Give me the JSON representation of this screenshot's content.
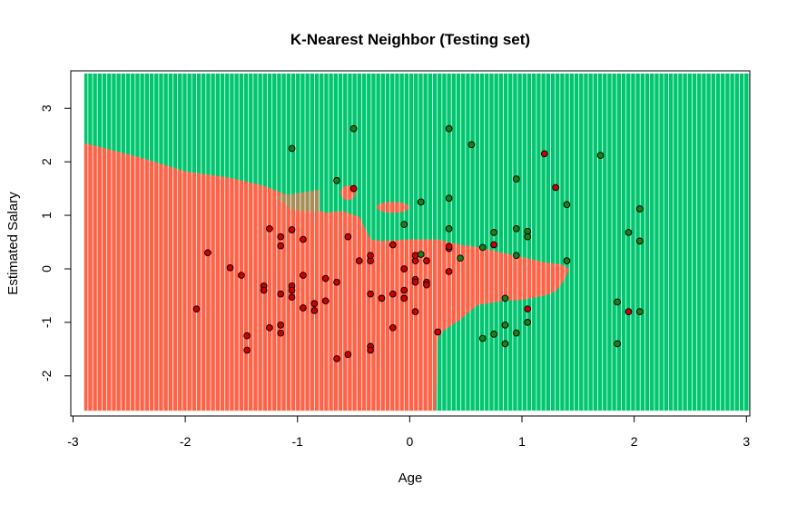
{
  "chart_data": {
    "type": "scatter",
    "title": "K-Nearest Neighbor (Testing set)",
    "xlabel": "Age",
    "ylabel": "Estimated Salary",
    "xlim": [
      -3.02,
      3.03
    ],
    "ylim": [
      -2.75,
      3.7
    ],
    "x_ticks": [
      -3,
      -2,
      -1,
      0,
      1,
      2,
      3
    ],
    "y_ticks": [
      -2,
      -1,
      0,
      1,
      2,
      3
    ],
    "grid": false,
    "legend": "none",
    "colors": {
      "region_0": "#ff6347",
      "region_1": "#00c66f",
      "point_0": "#cc0000",
      "point_1": "#1a7d1a",
      "point_border": "#000000"
    },
    "decision_boundary": [
      [
        -2.9,
        2.35
      ],
      [
        -2.4,
        2.08
      ],
      [
        -2.0,
        1.82
      ],
      [
        -1.6,
        1.7
      ],
      [
        -1.3,
        1.55
      ],
      [
        -1.1,
        1.38
      ],
      [
        -1.0,
        1.28
      ],
      [
        -0.82,
        1.1
      ],
      [
        -0.75,
        1.05
      ],
      [
        -0.6,
        1.08
      ],
      [
        -0.45,
        0.97
      ],
      [
        -0.35,
        0.55
      ],
      [
        -0.25,
        0.52
      ],
      [
        0.0,
        0.55
      ],
      [
        0.25,
        0.55
      ],
      [
        0.45,
        0.45
      ],
      [
        0.62,
        0.4
      ],
      [
        0.78,
        0.32
      ],
      [
        1.0,
        0.22
      ],
      [
        1.2,
        0.12
      ],
      [
        1.35,
        0.08
      ],
      [
        1.42,
        0.0
      ],
      [
        1.38,
        -0.2
      ],
      [
        1.3,
        -0.42
      ],
      [
        1.2,
        -0.5
      ],
      [
        1.0,
        -0.58
      ],
      [
        0.82,
        -0.6
      ],
      [
        0.6,
        -0.68
      ],
      [
        0.45,
        -0.95
      ],
      [
        0.3,
        -1.15
      ],
      [
        0.25,
        -1.3
      ],
      [
        0.23,
        -2.65
      ]
    ],
    "series": [
      {
        "values": [
          [
            -1.9,
            -0.75
          ],
          [
            -1.8,
            0.3
          ],
          [
            -1.6,
            0.02
          ],
          [
            -1.5,
            -0.12
          ],
          [
            -1.45,
            -1.25
          ],
          [
            -1.45,
            -1.52
          ],
          [
            -1.3,
            -0.32
          ],
          [
            -1.3,
            -0.4
          ],
          [
            -1.25,
            0.75
          ],
          [
            -1.25,
            -1.1
          ],
          [
            -1.15,
            0.6
          ],
          [
            -1.15,
            0.43
          ],
          [
            -1.15,
            -0.47
          ],
          [
            -1.15,
            -1.05
          ],
          [
            -1.15,
            -1.2
          ],
          [
            -1.05,
            0.73
          ],
          [
            -1.05,
            -0.32
          ],
          [
            -1.05,
            -0.4
          ],
          [
            -1.05,
            -0.53
          ],
          [
            -0.95,
            0.55
          ],
          [
            -0.95,
            -0.12
          ],
          [
            -0.95,
            -0.73
          ],
          [
            -0.85,
            -0.65
          ],
          [
            -0.85,
            -0.78
          ],
          [
            -0.75,
            -0.18
          ],
          [
            -0.75,
            -0.6
          ],
          [
            -0.65,
            -0.25
          ],
          [
            -0.65,
            -1.68
          ],
          [
            -0.55,
            0.6
          ],
          [
            -0.55,
            -1.6
          ],
          [
            -0.5,
            1.5
          ],
          [
            -0.45,
            0.15
          ],
          [
            -0.35,
            0.15
          ],
          [
            -0.35,
            0.25
          ],
          [
            -0.35,
            -0.47
          ],
          [
            -0.35,
            -1.45
          ],
          [
            -0.35,
            -1.52
          ],
          [
            -0.25,
            -0.55
          ],
          [
            -0.15,
            0.45
          ],
          [
            -0.15,
            -0.47
          ],
          [
            -0.15,
            -1.1
          ],
          [
            -0.05,
            0.0
          ],
          [
            -0.05,
            -0.4
          ],
          [
            -0.05,
            -0.55
          ],
          [
            0.05,
            0.15
          ],
          [
            0.05,
            0.25
          ],
          [
            0.05,
            -0.2
          ],
          [
            0.05,
            -0.25
          ],
          [
            0.05,
            -0.8
          ],
          [
            0.15,
            -0.25
          ],
          [
            0.15,
            -0.3
          ],
          [
            0.15,
            0.15
          ],
          [
            0.25,
            -1.18
          ],
          [
            0.35,
            0.38
          ],
          [
            0.35,
            0.42
          ],
          [
            0.35,
            -0.05
          ],
          [
            0.75,
            0.45
          ],
          [
            1.05,
            -0.75
          ],
          [
            1.2,
            2.15
          ],
          [
            1.3,
            1.52
          ],
          [
            1.95,
            -0.8
          ]
        ],
        "class": "0"
      },
      {
        "values": [
          [
            -1.05,
            2.25
          ],
          [
            -0.5,
            2.62
          ],
          [
            -0.65,
            1.65
          ],
          [
            -0.05,
            0.83
          ],
          [
            0.1,
            1.25
          ],
          [
            0.35,
            2.62
          ],
          [
            0.35,
            1.32
          ],
          [
            0.35,
            0.75
          ],
          [
            0.55,
            2.32
          ],
          [
            0.65,
            0.4
          ],
          [
            0.65,
            -1.3
          ],
          [
            0.75,
            0.68
          ],
          [
            0.75,
            -1.22
          ],
          [
            0.85,
            -0.55
          ],
          [
            0.85,
            -1.05
          ],
          [
            0.85,
            -1.4
          ],
          [
            0.95,
            1.68
          ],
          [
            0.95,
            0.75
          ],
          [
            0.95,
            0.25
          ],
          [
            0.95,
            -1.2
          ],
          [
            1.05,
            0.7
          ],
          [
            1.05,
            0.6
          ],
          [
            1.05,
            -1.0
          ],
          [
            1.4,
            1.2
          ],
          [
            1.4,
            0.15
          ],
          [
            1.7,
            2.12
          ],
          [
            1.85,
            -0.62
          ],
          [
            1.85,
            -1.4
          ],
          [
            1.95,
            0.68
          ],
          [
            2.05,
            1.12
          ],
          [
            2.05,
            0.52
          ],
          [
            2.05,
            -0.8
          ],
          [
            0.1,
            0.27
          ],
          [
            0.45,
            0.2
          ]
        ],
        "class": "1"
      }
    ]
  }
}
